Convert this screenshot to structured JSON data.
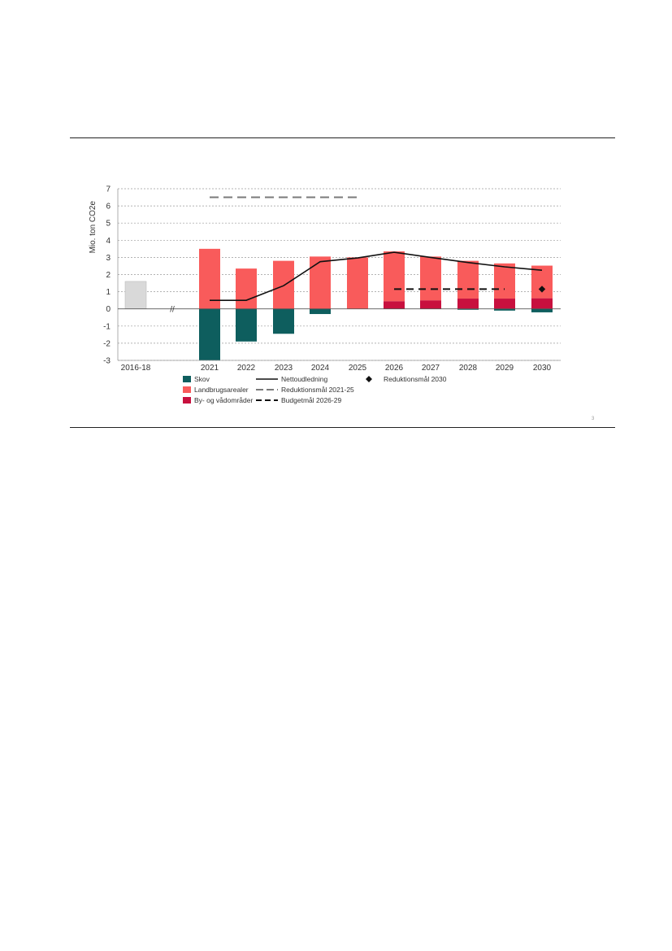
{
  "page": {
    "page_number": "3"
  },
  "chart_data": {
    "type": "bar",
    "ylabel": "Mio. ton CO2e",
    "ylim": [
      -3,
      7
    ],
    "yticks": [
      7,
      6,
      5,
      4,
      3,
      2,
      1,
      0,
      -1,
      -2,
      -3
    ],
    "grid": true,
    "break_marker": "//",
    "categories": [
      "2016-18",
      "2021",
      "2022",
      "2023",
      "2024",
      "2025",
      "2026",
      "2027",
      "2028",
      "2029",
      "2030"
    ],
    "baseline": {
      "category": "2016-18",
      "value": 1.6,
      "color": "#d9d9d9"
    },
    "stacked_series": [
      {
        "name": "Skov",
        "color": "#0e5e5e",
        "values": [
          null,
          -3.0,
          -1.9,
          -1.45,
          -0.3,
          0,
          0,
          0,
          -0.05,
          -0.1,
          -0.2
        ]
      },
      {
        "name": "Landbrugsarealer",
        "color": "#f95b5b",
        "values": [
          null,
          3.5,
          2.35,
          2.8,
          3.05,
          3.0,
          2.9,
          2.55,
          2.2,
          2.05,
          1.9
        ]
      },
      {
        "name": "By- og vådområder",
        "color": "#c8103e",
        "values": [
          null,
          0,
          0,
          0,
          0,
          0,
          0.45,
          0.5,
          0.6,
          0.6,
          0.62
        ]
      }
    ],
    "lines": [
      {
        "name": "Nettoudledning",
        "style": "solid",
        "color": "#111111",
        "points": [
          [
            "2021",
            0.5
          ],
          [
            "2022",
            0.5
          ],
          [
            "2023",
            1.35
          ],
          [
            "2024",
            2.75
          ],
          [
            "2025",
            2.97
          ],
          [
            "2026",
            3.3
          ],
          [
            "2027",
            3.0
          ],
          [
            "2028",
            2.7
          ],
          [
            "2029",
            2.45
          ],
          [
            "2030",
            2.25
          ]
        ]
      },
      {
        "name": "Reduktionsmål 2021-25",
        "style": "long-dash",
        "color": "#7a7a7a",
        "points": [
          [
            "2021",
            6.5
          ],
          [
            "2025",
            6.5
          ]
        ]
      },
      {
        "name": "Budgetmål 2026-29",
        "style": "dash",
        "color": "#111111",
        "points": [
          [
            "2026",
            1.15
          ],
          [
            "2029",
            1.15
          ]
        ]
      }
    ],
    "markers": [
      {
        "name": "Reduktionsmål 2030",
        "shape": "diamond",
        "color": "#111111",
        "category": "2030",
        "value": 1.15
      }
    ],
    "legend": {
      "placement": "bottom",
      "columns": [
        [
          "Skov",
          "Landbrugsarealer",
          "By- og vådområder"
        ],
        [
          "Nettoudledning",
          "Reduktionsmål 2021-25",
          "Budgetmål 2026-29"
        ],
        [
          "Reduktionsmål 2030"
        ]
      ]
    }
  }
}
